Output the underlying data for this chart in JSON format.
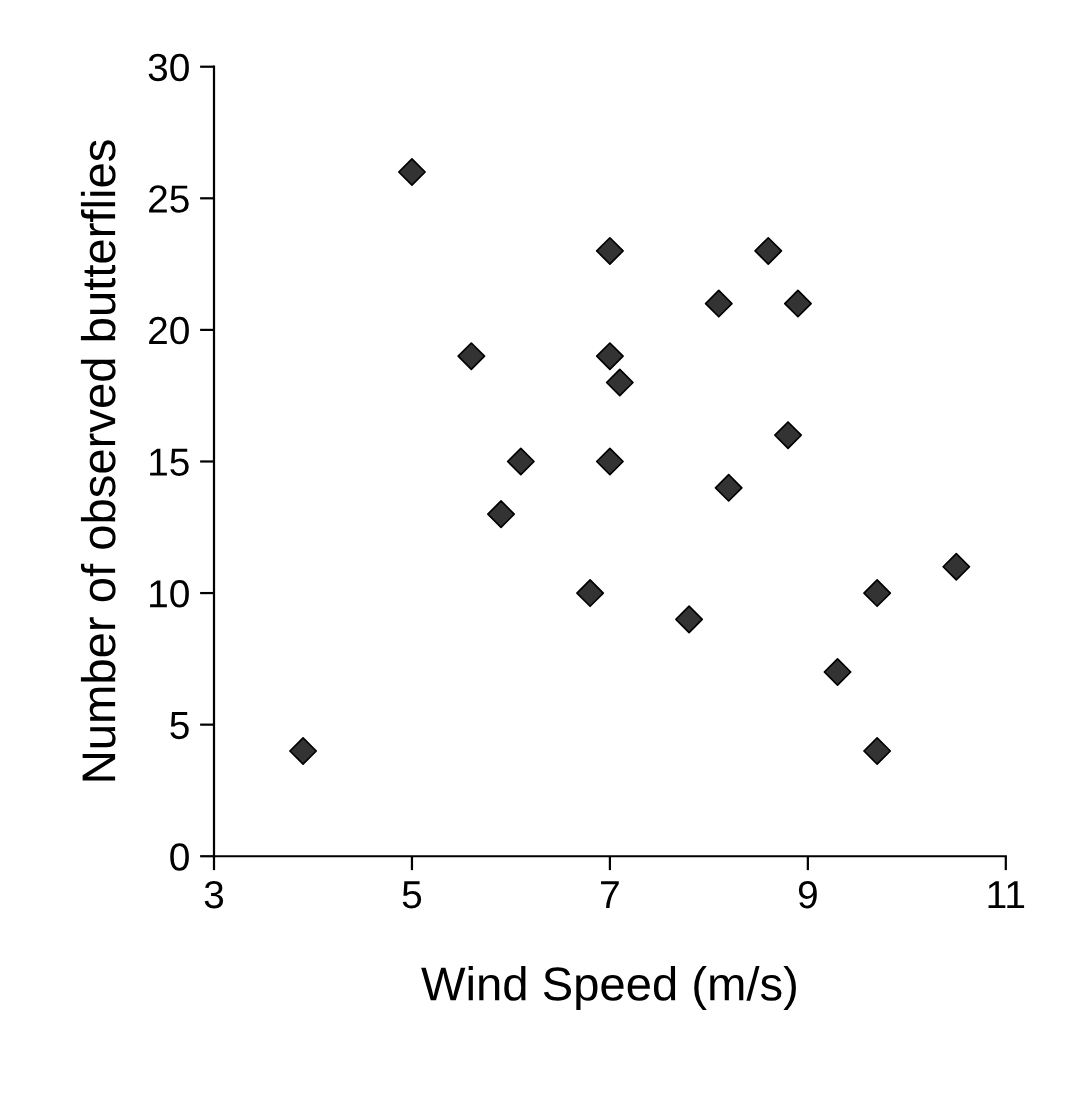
{
  "chart_data": {
    "type": "scatter",
    "xlabel": "Wind Speed (m/s)",
    "ylabel": "Number of observed butterflies",
    "x": [
      3.9,
      5.0,
      5.6,
      5.9,
      6.1,
      6.8,
      7.0,
      7.0,
      7.0,
      7.1,
      7.8,
      8.1,
      8.2,
      8.6,
      8.8,
      8.9,
      9.3,
      9.7,
      9.7,
      10.5
    ],
    "values": [
      4,
      26,
      19,
      13,
      15,
      10,
      23,
      19,
      15,
      18,
      9,
      21,
      14,
      23,
      16,
      21,
      7,
      10,
      4,
      11
    ],
    "color": "#333333",
    "marker": "diamond",
    "xlim": [
      3,
      11
    ],
    "xticks": [
      3,
      5,
      7,
      9,
      11
    ],
    "ylim": [
      0,
      30
    ],
    "yticks": [
      0,
      5,
      10,
      15,
      20,
      25,
      30
    ],
    "grid": false,
    "legend": false
  }
}
